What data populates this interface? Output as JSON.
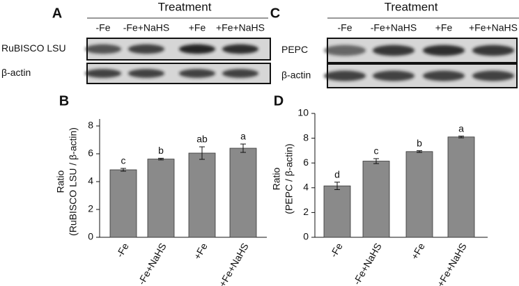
{
  "blots": [
    {
      "panel": "A",
      "treatment_title": "Treatment",
      "lanes": [
        "-Fe",
        "-Fe+NaHS",
        "+Fe",
        "+Fe+NaHS"
      ],
      "rows": [
        "RuBISCO LSU",
        "β-actin"
      ]
    },
    {
      "panel": "C",
      "treatment_title": "Treatment",
      "lanes": [
        "-Fe",
        "-Fe+NaHS",
        "+Fe",
        "+Fe+NaHS"
      ],
      "rows": [
        "PEPC",
        "β-actin"
      ]
    }
  ],
  "chart_data": [
    {
      "type": "bar",
      "panel": "B",
      "y_label": [
        "Ratio",
        "(RuBISCO LSU / β-actin)"
      ],
      "categories": [
        "-Fe",
        "-Fe+NaHS",
        "+Fe",
        "+Fe+NaHS"
      ],
      "values": [
        4.85,
        5.62,
        6.05,
        6.4
      ],
      "errors": [
        0.1,
        0.06,
        0.45,
        0.3
      ],
      "annotations": [
        "c",
        "b",
        "ab",
        "a"
      ],
      "color": "#8a8a8a",
      "ylim": [
        0,
        8.5
      ],
      "yticks": [
        0,
        2,
        4,
        6,
        8
      ]
    },
    {
      "type": "bar",
      "panel": "D",
      "y_label": [
        "Ratio",
        "(PEPC / β-actin)"
      ],
      "categories": [
        "-Fe",
        "-Fe+NaHS",
        "+Fe",
        "+Fe+NaHS"
      ],
      "values": [
        4.15,
        6.15,
        6.92,
        8.1
      ],
      "errors": [
        0.3,
        0.2,
        0.07,
        0.07
      ],
      "annotations": [
        "d",
        "c",
        "b",
        "a"
      ],
      "color": "#8a8a8a",
      "ylim": [
        0,
        10
      ],
      "yticks": [
        0,
        2,
        4,
        6,
        8,
        10
      ]
    }
  ]
}
